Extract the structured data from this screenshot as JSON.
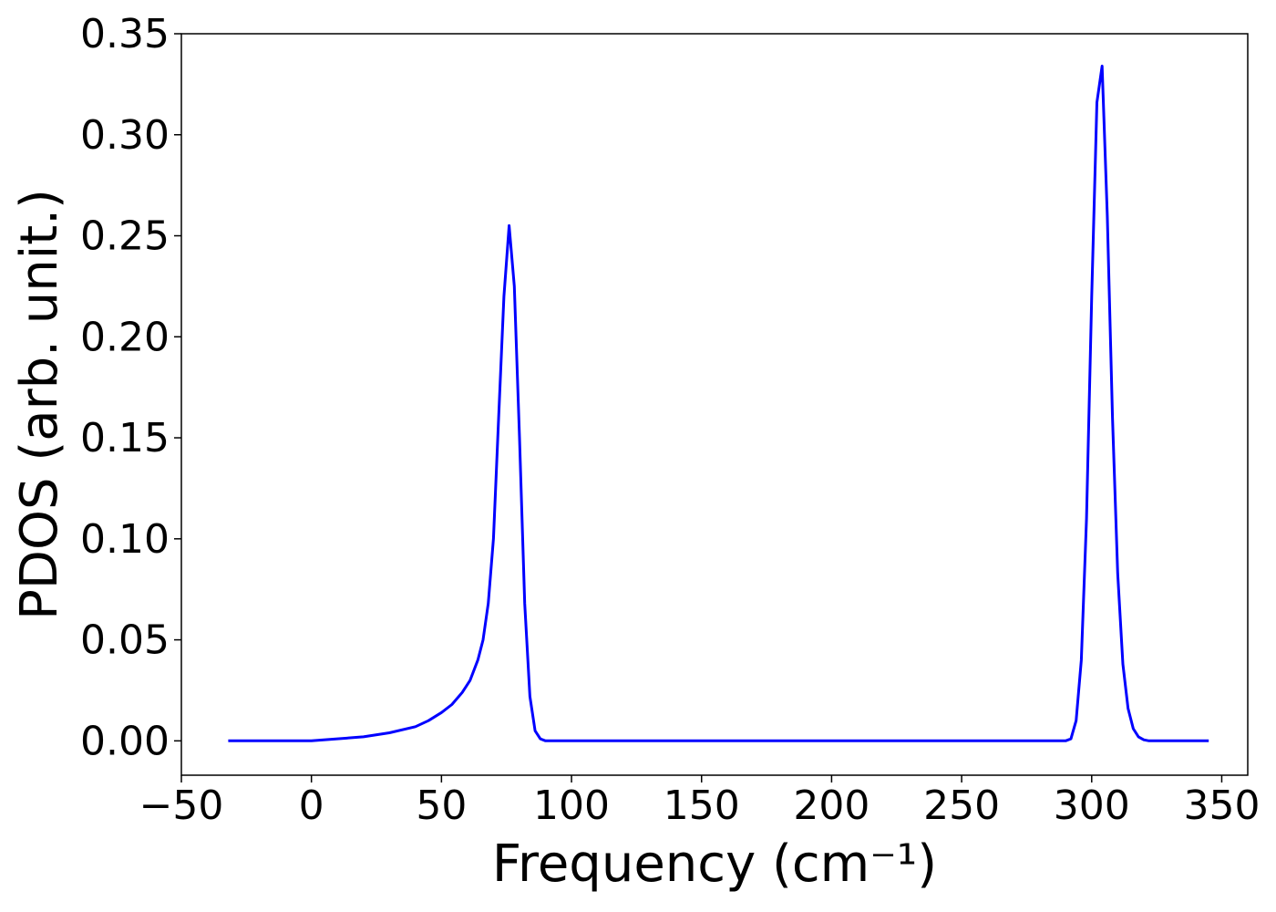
{
  "chart_data": {
    "type": "line",
    "title": "",
    "xlabel": "Frequency (cm⁻¹)",
    "ylabel": "PDOS (arb. unit.)",
    "xlim": [
      -50,
      360
    ],
    "ylim": [
      -0.017,
      0.35
    ],
    "x_ticks": [
      -50,
      0,
      50,
      100,
      150,
      200,
      250,
      300,
      350
    ],
    "x_tick_labels": [
      "−50",
      "0",
      "50",
      "100",
      "150",
      "200",
      "250",
      "300",
      "350"
    ],
    "y_ticks": [
      0.0,
      0.05,
      0.1,
      0.15,
      0.2,
      0.25,
      0.3,
      0.35
    ],
    "y_tick_labels": [
      "0.00",
      "0.05",
      "0.10",
      "0.15",
      "0.20",
      "0.25",
      "0.30",
      "0.35"
    ],
    "grid": false,
    "series": [
      {
        "color": "#0000ff",
        "x": [
          -32,
          -20,
          -10,
          0,
          10,
          20,
          30,
          40,
          45,
          50,
          54,
          58,
          61,
          64,
          66,
          68,
          70,
          72,
          74,
          76,
          78,
          80,
          82,
          84,
          86,
          88,
          90,
          100,
          150,
          200,
          250,
          290,
          292,
          294,
          296,
          298,
          300,
          302,
          304,
          306,
          308,
          310,
          312,
          314,
          316,
          318,
          320,
          322,
          325,
          330,
          345
        ],
        "y": [
          0.0,
          0.0,
          0.0,
          0.0,
          0.001,
          0.002,
          0.004,
          0.007,
          0.01,
          0.014,
          0.018,
          0.024,
          0.03,
          0.04,
          0.05,
          0.068,
          0.1,
          0.16,
          0.22,
          0.255,
          0.225,
          0.15,
          0.068,
          0.022,
          0.005,
          0.001,
          0.0,
          0.0,
          0.0,
          0.0,
          0.0,
          0.0,
          0.001,
          0.01,
          0.04,
          0.11,
          0.22,
          0.316,
          0.334,
          0.26,
          0.16,
          0.083,
          0.038,
          0.016,
          0.006,
          0.002,
          0.0005,
          0.0,
          0.0,
          0.0,
          0.0
        ]
      }
    ]
  }
}
